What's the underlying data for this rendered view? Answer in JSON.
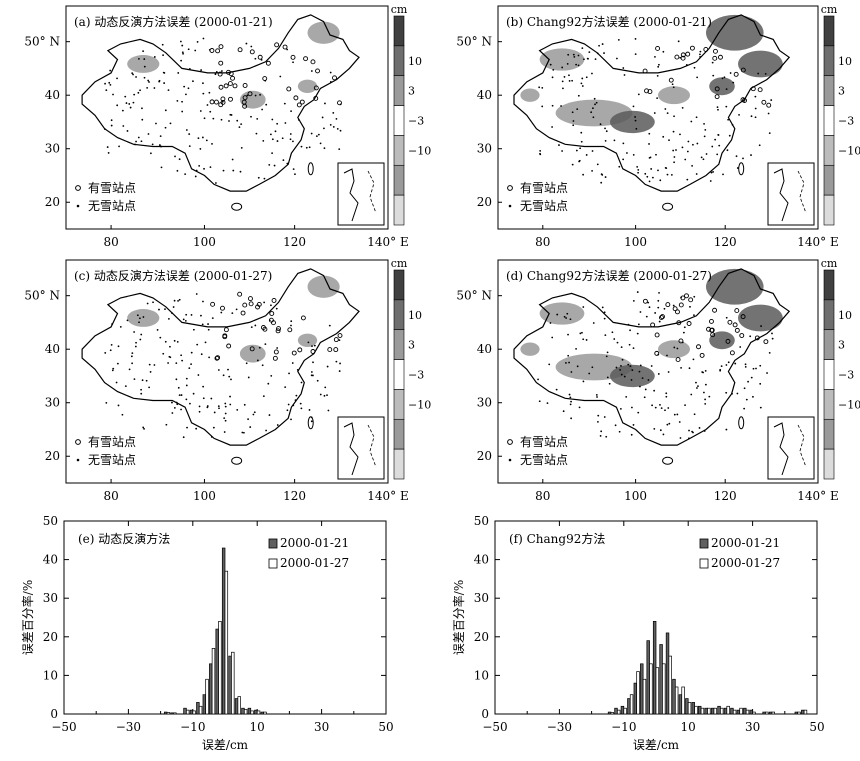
{
  "figure": {
    "colors": {
      "frame": "#000000",
      "cb_lightest": "#dcdcdc",
      "cb_light": "#bcbcbc",
      "cb_mid": "#9a9a9a",
      "cb_dark": "#6e6e6e",
      "cb_darkest": "#404040",
      "shade_pos": "#5a5a5a",
      "shade_neg": "#999999",
      "bar_dark": "#606060",
      "bar_light": "#ffffff"
    },
    "maps": [
      {
        "id": "a",
        "title": "(a) 动态反演方法误差 (2000-01-21)",
        "legend_snow": "有雪站点",
        "legend_nosnow": "无雪站点",
        "colorbar_unit": "cm",
        "colorbar_ticks": [
          "10",
          "3",
          "−3",
          "−10"
        ],
        "lat_ticks": [
          "50° N",
          "40",
          "30",
          "20"
        ],
        "lon_ticks": [
          "80",
          "100",
          "120",
          "140° E"
        ],
        "shading": "sparse"
      },
      {
        "id": "b",
        "title": "(b) Chang92方法误差 (2000-01-21)",
        "legend_snow": "有雪站点",
        "legend_nosnow": "无雪站点",
        "colorbar_unit": "cm",
        "colorbar_ticks": [
          "10",
          "3",
          "−3",
          "−10"
        ],
        "lat_ticks": [
          "50° N",
          "40",
          "30",
          "20"
        ],
        "lon_ticks": [
          "80",
          "100",
          "120",
          "140° E"
        ],
        "shading": "heavy"
      },
      {
        "id": "c",
        "title": "(c) 动态反演方法误差 (2000-01-27)",
        "legend_snow": "有雪站点",
        "legend_nosnow": "无雪站点",
        "colorbar_unit": "cm",
        "colorbar_ticks": [
          "10",
          "3",
          "−3",
          "−10"
        ],
        "lat_ticks": [
          "50° N",
          "40",
          "30",
          "20"
        ],
        "lon_ticks": [
          "80",
          "100",
          "120",
          "140° E"
        ],
        "shading": "sparse"
      },
      {
        "id": "d",
        "title": "(d) Chang92方法误差 (2000-01-27)",
        "legend_snow": "有雪站点",
        "legend_nosnow": "无雪站点",
        "colorbar_unit": "cm",
        "colorbar_ticks": [
          "10",
          "3",
          "−3",
          "−10"
        ],
        "lat_ticks": [
          "50° N",
          "40",
          "30",
          "20"
        ],
        "lon_ticks": [
          "80",
          "100",
          "120",
          "140° E"
        ],
        "shading": "heavy"
      }
    ]
  },
  "chart_data": [
    {
      "type": "bar",
      "panel": "e",
      "title": "(e) 动态反演方法",
      "xlabel": "误差/cm",
      "ylabel": "误差百分率/%",
      "xlim": [
        -50,
        50
      ],
      "ylim": [
        0,
        50
      ],
      "xticks": [
        "−50",
        "−30",
        "−10",
        "10",
        "30",
        "50"
      ],
      "yticks": [
        "0",
        "10",
        "20",
        "30",
        "40",
        "50"
      ],
      "legend_position": "top-right",
      "series": [
        {
          "name": "2000-01-21",
          "color": "#606060",
          "x": [
            -18,
            -16,
            -12,
            -10,
            -8,
            -6,
            -4,
            -2,
            0,
            2,
            4,
            6,
            8,
            10,
            12
          ],
          "values": [
            0.5,
            0.3,
            1.5,
            1,
            3,
            5,
            13,
            22,
            43,
            15,
            4,
            1.5,
            1.5,
            1,
            0.5
          ]
        },
        {
          "name": "2000-01-27",
          "color": "#ffffff",
          "x": [
            -18,
            -16,
            -12,
            -10,
            -8,
            -6,
            -4,
            -2,
            0,
            2,
            4,
            6,
            8,
            10,
            12
          ],
          "values": [
            0.4,
            0.3,
            1,
            0.8,
            2,
            9,
            17,
            24,
            37,
            16,
            4.5,
            1.2,
            0.8,
            0.8,
            0.5
          ]
        }
      ]
    },
    {
      "type": "bar",
      "panel": "f",
      "title": "(f) Chang92方法",
      "xlabel": "误差/cm",
      "ylabel": "误差百分率/%",
      "xlim": [
        -50,
        50
      ],
      "ylim": [
        0,
        50
      ],
      "xticks": [
        "−50",
        "−30",
        "−10",
        "10",
        "30",
        "50"
      ],
      "yticks": [
        "0",
        "10",
        "20",
        "30",
        "40",
        "50"
      ],
      "legend_position": "top-right",
      "series": [
        {
          "name": "2000-01-21",
          "color": "#606060",
          "x": [
            -14,
            -12,
            -10,
            -8,
            -6,
            -4,
            -2,
            0,
            2,
            4,
            6,
            8,
            10,
            12,
            14,
            16,
            18,
            20,
            22,
            24,
            26,
            28,
            30,
            34,
            36,
            44,
            46
          ],
          "values": [
            0.5,
            1.5,
            2,
            4,
            8,
            13,
            19,
            24,
            18,
            21,
            9,
            5,
            4,
            3,
            2,
            1.5,
            1.5,
            2,
            1.5,
            1.5,
            1,
            1.5,
            1,
            0.5,
            0.5,
            0.5,
            1
          ]
        },
        {
          "name": "2000-01-27",
          "color": "#ffffff",
          "x": [
            -14,
            -12,
            -10,
            -8,
            -6,
            -4,
            -2,
            0,
            2,
            4,
            6,
            8,
            10,
            12,
            14,
            16,
            18,
            20,
            22,
            24,
            26,
            28,
            30,
            34,
            36,
            44,
            46
          ],
          "values": [
            0.4,
            1,
            1.5,
            5,
            11,
            9,
            13,
            12,
            13,
            15,
            7,
            7,
            3,
            2,
            1.5,
            1.5,
            1.5,
            1.5,
            2,
            1,
            1.5,
            1,
            0.5,
            0.5,
            0.5,
            0.5,
            1
          ]
        }
      ]
    }
  ]
}
